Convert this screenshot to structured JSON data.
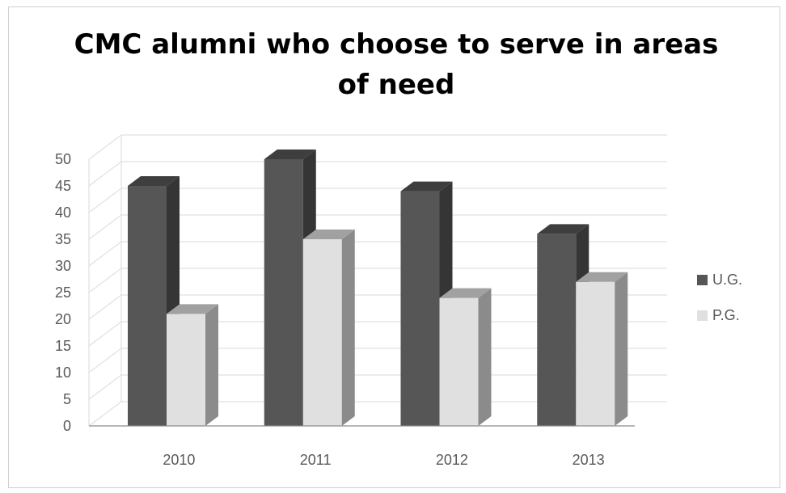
{
  "chart_data": {
    "type": "bar",
    "title": "CMC alumni who choose to serve in areas of need",
    "categories": [
      "2010",
      "2011",
      "2012",
      "2013"
    ],
    "series": [
      {
        "name": "U.G.",
        "values": [
          45,
          50,
          44,
          36
        ],
        "color": "#565656"
      },
      {
        "name": "P.G.",
        "values": [
          21,
          35,
          24,
          27
        ],
        "color": "#e0e0e0"
      }
    ],
    "y_ticks": [
      "0",
      "5",
      "10",
      "15",
      "20",
      "25",
      "30",
      "35",
      "40",
      "45",
      "50"
    ],
    "ylim": [
      0,
      50
    ],
    "grid": true,
    "style": "3d-column",
    "legend": "right"
  }
}
